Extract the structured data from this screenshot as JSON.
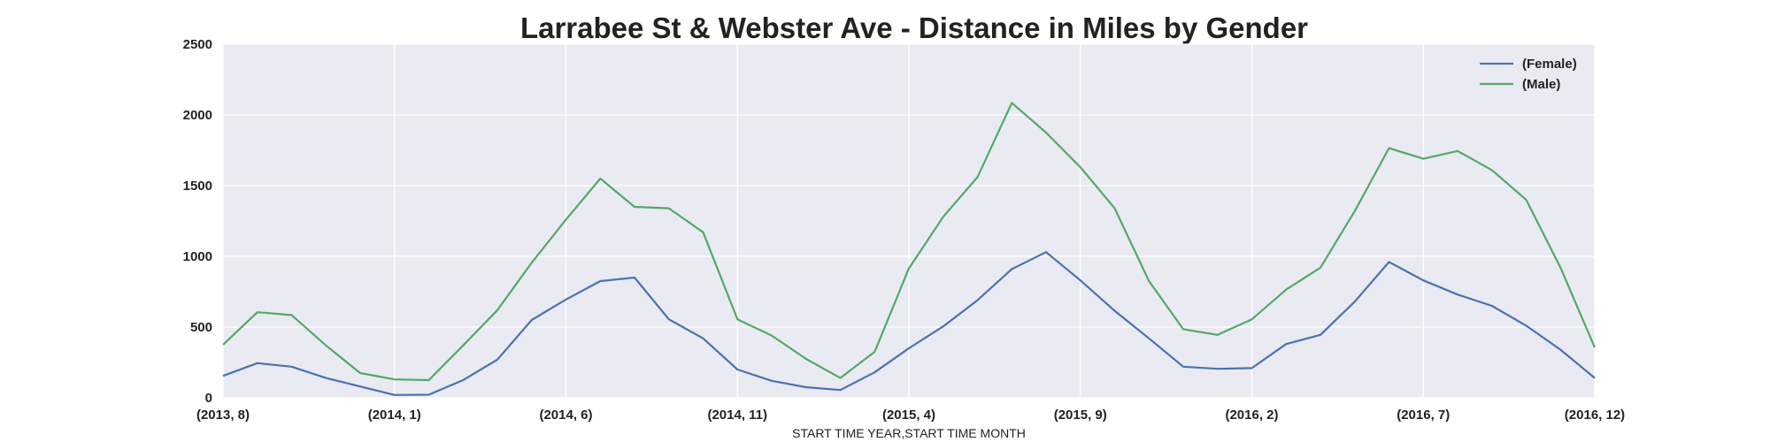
{
  "chart_data": {
    "type": "line",
    "title": "Larrabee St & Webster Ave - Distance in Miles by Gender",
    "xlabel": "START TIME YEAR,START TIME MONTH",
    "ylabel": "",
    "ylim": [
      0,
      2500
    ],
    "yticks": [
      "0",
      "500",
      "1000",
      "1500",
      "2000",
      "2500"
    ],
    "x_tick_labels": [
      "(2013, 8)",
      "(2014, 1)",
      "(2014, 6)",
      "(2014, 11)",
      "(2015, 4)",
      "(2015, 9)",
      "(2016, 2)",
      "(2016, 7)",
      "(2016, 12)"
    ],
    "x": [
      "(2013, 8)",
      "(2013, 9)",
      "(2013, 10)",
      "(2013, 11)",
      "(2013, 12)",
      "(2014, 1)",
      "(2014, 2)",
      "(2014, 3)",
      "(2014, 4)",
      "(2014, 5)",
      "(2014, 6)",
      "(2014, 7)",
      "(2014, 8)",
      "(2014, 9)",
      "(2014, 10)",
      "(2014, 11)",
      "(2014, 12)",
      "(2015, 1)",
      "(2015, 2)",
      "(2015, 3)",
      "(2015, 4)",
      "(2015, 5)",
      "(2015, 6)",
      "(2015, 7)",
      "(2015, 8)",
      "(2015, 9)",
      "(2015, 10)",
      "(2015, 11)",
      "(2015, 12)",
      "(2016, 1)",
      "(2016, 2)",
      "(2016, 3)",
      "(2016, 4)",
      "(2016, 5)",
      "(2016, 6)",
      "(2016, 7)",
      "(2016, 8)",
      "(2016, 9)",
      "(2016, 10)",
      "(2016, 11)",
      "(2016, 12)"
    ],
    "grid": true,
    "legend_position": "top-right",
    "series": [
      {
        "name": "(Female)",
        "color": "#4c72b0",
        "values": [
          155,
          245,
          220,
          140,
          80,
          20,
          22,
          125,
          270,
          550,
          695,
          825,
          850,
          555,
          420,
          200,
          120,
          75,
          55,
          180,
          350,
          505,
          690,
          910,
          1030,
          830,
          615,
          420,
          220,
          205,
          210,
          380,
          445,
          680,
          960,
          830,
          730,
          650,
          510,
          340,
          140
        ]
      },
      {
        "name": "(Male)",
        "color": "#55a868",
        "values": [
          375,
          605,
          585,
          370,
          175,
          130,
          125,
          370,
          620,
          955,
          1260,
          1550,
          1350,
          1340,
          1170,
          555,
          440,
          275,
          140,
          325,
          915,
          1280,
          1560,
          2085,
          1875,
          1630,
          1340,
          825,
          485,
          445,
          555,
          765,
          920,
          1320,
          1765,
          1690,
          1745,
          1610,
          1400,
          920,
          355
        ]
      }
    ]
  }
}
